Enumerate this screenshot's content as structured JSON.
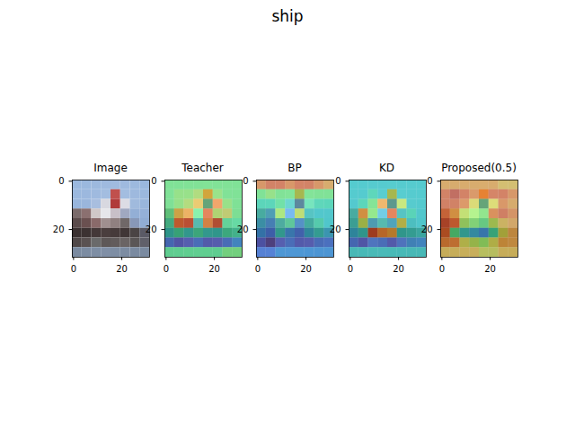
{
  "title": "ship",
  "chart_data": [
    {
      "type": "image",
      "title": "Image",
      "xlim": [
        -0.5,
        31.5
      ],
      "ylim": [
        31.5,
        -0.5
      ],
      "xticks": [
        0,
        20
      ],
      "yticks": [
        0,
        20
      ],
      "colors": [
        [
          "#9bb8de",
          "#9bb8de",
          "#9db9de",
          "#9fbadf",
          "#a0bbdf",
          "#9fbadf",
          "#9db9de",
          "#9bb8de"
        ],
        [
          "#9bb8de",
          "#9cb8de",
          "#9fbadf",
          "#a3bde0",
          "#c0504d",
          "#a3bde0",
          "#9eb9de",
          "#9bb8de"
        ],
        [
          "#98b5dc",
          "#9ab6dc",
          "#a8bedf",
          "#d8d8e0",
          "#b03a3a",
          "#dcdce4",
          "#a0badd",
          "#99b6dc"
        ],
        [
          "#7a6a6a",
          "#8b7070",
          "#d0c8c8",
          "#e6e6ea",
          "#c8c0c8",
          "#a0a8c0",
          "#93afd6",
          "#94b0d8"
        ],
        [
          "#5a4a4a",
          "#6a5050",
          "#8a6a6a",
          "#a09090",
          "#908080",
          "#706868",
          "#8898b8",
          "#90acd4"
        ],
        [
          "#3a3030",
          "#3c3232",
          "#443838",
          "#4a3e3e",
          "#463a3a",
          "#403636",
          "#4a4444",
          "#5a5a66"
        ],
        [
          "#504848",
          "#5a5252",
          "#6a6a6a",
          "#5e5858",
          "#625c5c",
          "#6a6464",
          "#5a5656",
          "#60606a"
        ],
        [
          "#7a8aa0",
          "#7c8ca2",
          "#7e8ea4",
          "#808fa6",
          "#7e8ea4",
          "#7c8ca2",
          "#7a8aa0",
          "#7a8aa0"
        ]
      ]
    },
    {
      "type": "heatmap",
      "title": "Teacher",
      "xlim": [
        -0.5,
        31.5
      ],
      "ylim": [
        31.5,
        -0.5
      ],
      "xticks": [
        0,
        20
      ],
      "yticks": [
        0,
        20
      ],
      "cells": [
        [
          0.45,
          0.45,
          0.45,
          0.45,
          0.45,
          0.45,
          0.45,
          0.45
        ],
        [
          0.45,
          0.5,
          0.5,
          0.55,
          0.6,
          0.5,
          0.45,
          0.45
        ],
        [
          0.45,
          0.5,
          0.55,
          0.65,
          0.35,
          0.75,
          0.5,
          0.45
        ],
        [
          0.4,
          0.65,
          0.7,
          0.4,
          0.8,
          0.55,
          0.6,
          0.45
        ],
        [
          0.35,
          0.8,
          0.85,
          0.3,
          0.75,
          0.85,
          0.4,
          0.4
        ],
        [
          0.3,
          0.35,
          0.3,
          0.35,
          0.3,
          0.3,
          0.35,
          0.35
        ],
        [
          0.15,
          0.1,
          0.1,
          0.15,
          0.1,
          0.1,
          0.15,
          0.2
        ],
        [
          0.4,
          0.4,
          0.4,
          0.4,
          0.4,
          0.4,
          0.45,
          0.45
        ]
      ]
    },
    {
      "type": "heatmap",
      "title": "BP",
      "xlim": [
        -0.5,
        31.5
      ],
      "ylim": [
        31.5,
        -0.5
      ],
      "xticks": [
        0,
        20
      ],
      "yticks": [
        0,
        20
      ],
      "cells": [
        [
          0.75,
          0.8,
          0.8,
          0.75,
          0.8,
          0.8,
          0.75,
          0.7
        ],
        [
          0.45,
          0.5,
          0.45,
          0.45,
          0.5,
          0.45,
          0.45,
          0.45
        ],
        [
          0.35,
          0.35,
          0.4,
          0.3,
          0.25,
          0.35,
          0.35,
          0.35
        ],
        [
          0.3,
          0.25,
          0.5,
          0.2,
          0.55,
          0.3,
          0.3,
          0.3
        ],
        [
          0.25,
          0.2,
          0.3,
          0.35,
          0.2,
          0.3,
          0.35,
          0.3
        ],
        [
          0.2,
          0.15,
          0.3,
          0.2,
          0.15,
          0.25,
          0.3,
          0.25
        ],
        [
          0.1,
          0.05,
          0.1,
          0.15,
          0.1,
          0.1,
          0.15,
          0.15
        ],
        [
          0.15,
          0.15,
          0.2,
          0.2,
          0.2,
          0.2,
          0.2,
          0.2
        ]
      ]
    },
    {
      "type": "heatmap",
      "title": "KD",
      "xlim": [
        -0.5,
        31.5
      ],
      "ylim": [
        31.5,
        -0.5
      ],
      "xticks": [
        0,
        20
      ],
      "yticks": [
        0,
        20
      ],
      "cells": [
        [
          0.3,
          0.3,
          0.3,
          0.3,
          0.3,
          0.3,
          0.3,
          0.3
        ],
        [
          0.3,
          0.3,
          0.35,
          0.3,
          0.5,
          0.3,
          0.3,
          0.3
        ],
        [
          0.3,
          0.35,
          0.45,
          0.7,
          0.3,
          0.55,
          0.3,
          0.3
        ],
        [
          0.3,
          0.7,
          0.45,
          0.25,
          0.8,
          0.3,
          0.35,
          0.3
        ],
        [
          0.3,
          0.55,
          0.25,
          0.3,
          0.25,
          0.6,
          0.3,
          0.3
        ],
        [
          0.25,
          0.3,
          0.85,
          0.75,
          0.7,
          0.3,
          0.3,
          0.3
        ],
        [
          0.15,
          0.1,
          0.15,
          0.15,
          0.1,
          0.15,
          0.2,
          0.2
        ],
        [
          0.3,
          0.3,
          0.3,
          0.3,
          0.3,
          0.3,
          0.3,
          0.3
        ]
      ]
    },
    {
      "type": "heatmap",
      "title": "Proposed(0.5)",
      "xlim": [
        -0.5,
        31.5
      ],
      "ylim": [
        31.5,
        -0.5
      ],
      "xticks": [
        0,
        20
      ],
      "yticks": [
        0,
        20
      ],
      "cells": [
        [
          0.7,
          0.7,
          0.7,
          0.7,
          0.7,
          0.7,
          0.65,
          0.65
        ],
        [
          0.8,
          0.85,
          0.8,
          0.75,
          0.7,
          0.8,
          0.8,
          0.75
        ],
        [
          0.8,
          0.8,
          0.75,
          0.6,
          0.35,
          0.6,
          0.75,
          0.7
        ],
        [
          0.8,
          0.7,
          0.55,
          0.5,
          0.45,
          0.75,
          0.8,
          0.75
        ],
        [
          0.85,
          0.8,
          0.5,
          0.45,
          0.4,
          0.55,
          0.65,
          0.7
        ],
        [
          0.8,
          0.4,
          0.3,
          0.25,
          0.2,
          0.35,
          0.6,
          0.7
        ],
        [
          0.75,
          0.75,
          0.6,
          0.55,
          0.5,
          0.6,
          0.7,
          0.7
        ],
        [
          0.65,
          0.65,
          0.65,
          0.65,
          0.6,
          0.6,
          0.65,
          0.65
        ]
      ]
    }
  ]
}
